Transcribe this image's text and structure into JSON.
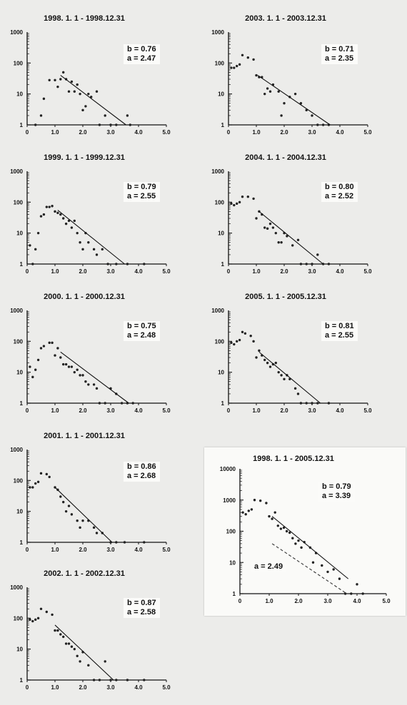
{
  "chart_data": [
    {
      "type": "scatter",
      "title": "1998. 1. 1 - 1998.12.31",
      "y_scale": "log",
      "xlim": [
        0,
        5.0
      ],
      "ylim": [
        1,
        1000
      ],
      "x_ticks": [
        "0",
        "1.0",
        "2.0",
        "3.0",
        "4.0",
        "5.0"
      ],
      "y_ticks": [
        "1000",
        "100",
        "10",
        "1"
      ],
      "annotations": {
        "b": "b = 0.76",
        "a": "a = 2.47"
      },
      "points": [
        [
          0.3,
          1
        ],
        [
          0.5,
          2
        ],
        [
          0.6,
          7
        ],
        [
          0.8,
          28
        ],
        [
          1.0,
          28
        ],
        [
          1.1,
          17
        ],
        [
          1.2,
          30
        ],
        [
          1.3,
          50
        ],
        [
          1.4,
          30
        ],
        [
          1.5,
          12
        ],
        [
          1.6,
          25
        ],
        [
          1.7,
          12
        ],
        [
          1.8,
          20
        ],
        [
          1.9,
          10
        ],
        [
          2.0,
          3
        ],
        [
          2.1,
          4
        ],
        [
          2.2,
          10
        ],
        [
          2.3,
          8
        ],
        [
          2.5,
          12
        ],
        [
          2.6,
          1
        ],
        [
          2.8,
          2
        ],
        [
          3.0,
          1
        ],
        [
          3.2,
          1
        ],
        [
          3.6,
          2
        ],
        [
          3.7,
          1
        ]
      ],
      "fit_line": {
        "x": [
          1.2,
          3.55
        ],
        "y": [
          40,
          1
        ]
      }
    },
    {
      "type": "scatter",
      "title": "2003. 1. 1 - 2003.12.31",
      "y_scale": "log",
      "xlim": [
        0,
        5.0
      ],
      "ylim": [
        1,
        1000
      ],
      "x_ticks": [
        "0",
        "1.0",
        "2.0",
        "3.0",
        "4.0",
        "5.0"
      ],
      "y_ticks": [
        "1000",
        "100",
        "10",
        "1"
      ],
      "annotations": {
        "b": "b = 0.71",
        "a": "a = 2.35"
      },
      "points": [
        [
          0.1,
          70
        ],
        [
          0.2,
          70
        ],
        [
          0.3,
          80
        ],
        [
          0.4,
          90
        ],
        [
          0.5,
          180
        ],
        [
          0.7,
          150
        ],
        [
          0.9,
          130
        ],
        [
          1.0,
          40
        ],
        [
          1.1,
          35
        ],
        [
          1.2,
          35
        ],
        [
          1.3,
          10
        ],
        [
          1.4,
          15
        ],
        [
          1.5,
          12
        ],
        [
          1.6,
          20
        ],
        [
          1.8,
          12
        ],
        [
          1.9,
          2
        ],
        [
          2.0,
          5
        ],
        [
          2.2,
          8
        ],
        [
          2.4,
          10
        ],
        [
          2.6,
          5
        ],
        [
          2.8,
          3
        ],
        [
          3.0,
          2
        ],
        [
          3.2,
          1
        ],
        [
          3.4,
          1
        ],
        [
          3.6,
          1
        ]
      ],
      "fit_line": {
        "x": [
          1.05,
          3.65
        ],
        "y": [
          40,
          1
        ]
      }
    },
    {
      "type": "scatter",
      "title": "1999. 1. 1 - 1999.12.31",
      "y_scale": "log",
      "xlim": [
        0,
        5.0
      ],
      "ylim": [
        1,
        1000
      ],
      "x_ticks": [
        "0",
        "1.0",
        "2.0",
        "3.0",
        "4.0",
        "5.0"
      ],
      "y_ticks": [
        "1000",
        "100",
        "10",
        "1"
      ],
      "annotations": {
        "b": "b = 0.79",
        "a": "a = 2.55"
      },
      "points": [
        [
          0.1,
          4
        ],
        [
          0.2,
          1
        ],
        [
          0.3,
          3
        ],
        [
          0.4,
          10
        ],
        [
          0.5,
          35
        ],
        [
          0.6,
          40
        ],
        [
          0.7,
          70
        ],
        [
          0.8,
          70
        ],
        [
          0.9,
          75
        ],
        [
          1.0,
          50
        ],
        [
          1.1,
          45
        ],
        [
          1.2,
          40
        ],
        [
          1.3,
          30
        ],
        [
          1.4,
          20
        ],
        [
          1.5,
          25
        ],
        [
          1.6,
          15
        ],
        [
          1.7,
          25
        ],
        [
          1.8,
          10
        ],
        [
          1.9,
          5
        ],
        [
          2.0,
          3
        ],
        [
          2.1,
          10
        ],
        [
          2.2,
          5
        ],
        [
          2.4,
          3
        ],
        [
          2.5,
          2
        ],
        [
          2.7,
          3
        ],
        [
          2.9,
          1
        ],
        [
          3.2,
          1
        ],
        [
          3.6,
          1
        ],
        [
          4.2,
          1
        ]
      ],
      "fit_line": {
        "x": [
          1.1,
          3.5
        ],
        "y": [
          55,
          1
        ]
      }
    },
    {
      "type": "scatter",
      "title": "2004. 1. 1 - 2004.12.31",
      "y_scale": "log",
      "xlim": [
        0,
        5.0
      ],
      "ylim": [
        1,
        1000
      ],
      "x_ticks": [
        "0",
        "1.0",
        "2.0",
        "3.0",
        "4.0",
        "5.0"
      ],
      "y_ticks": [
        "1000",
        "100",
        "10",
        "1"
      ],
      "annotations": {
        "b": "b = 0.80",
        "a": "a = 2.52"
      },
      "points": [
        [
          0.1,
          90
        ],
        [
          0.2,
          80
        ],
        [
          0.3,
          90
        ],
        [
          0.4,
          100
        ],
        [
          0.5,
          150
        ],
        [
          0.7,
          150
        ],
        [
          0.9,
          130
        ],
        [
          1.0,
          30
        ],
        [
          1.1,
          50
        ],
        [
          1.2,
          40
        ],
        [
          1.3,
          15
        ],
        [
          1.4,
          14
        ],
        [
          1.5,
          20
        ],
        [
          1.6,
          15
        ],
        [
          1.7,
          10
        ],
        [
          1.8,
          5
        ],
        [
          1.9,
          5
        ],
        [
          2.0,
          10
        ],
        [
          2.1,
          8
        ],
        [
          2.3,
          4
        ],
        [
          2.5,
          6
        ],
        [
          2.6,
          1
        ],
        [
          2.8,
          1
        ],
        [
          3.0,
          1
        ],
        [
          3.2,
          2
        ],
        [
          3.4,
          1
        ],
        [
          3.6,
          1
        ]
      ],
      "fit_line": {
        "x": [
          1.1,
          3.4
        ],
        "y": [
          50,
          1
        ]
      }
    },
    {
      "type": "scatter",
      "title": "2000. 1. 1 - 2000.12.31",
      "y_scale": "log",
      "xlim": [
        0,
        5.0
      ],
      "ylim": [
        1,
        1000
      ],
      "x_ticks": [
        "0",
        "1.0",
        "2.0",
        "3.0",
        "4.0",
        "5.0"
      ],
      "y_ticks": [
        "1000",
        "100",
        "10",
        "1"
      ],
      "annotations": {
        "b": "b = 0.75",
        "a": "a = 2.48"
      },
      "points": [
        [
          0.1,
          15
        ],
        [
          0.2,
          7
        ],
        [
          0.3,
          12
        ],
        [
          0.4,
          25
        ],
        [
          0.5,
          60
        ],
        [
          0.6,
          70
        ],
        [
          0.8,
          90
        ],
        [
          0.9,
          90
        ],
        [
          1.0,
          35
        ],
        [
          1.1,
          60
        ],
        [
          1.2,
          30
        ],
        [
          1.3,
          18
        ],
        [
          1.4,
          18
        ],
        [
          1.5,
          15
        ],
        [
          1.6,
          15
        ],
        [
          1.7,
          10
        ],
        [
          1.8,
          12
        ],
        [
          1.9,
          8
        ],
        [
          2.0,
          8
        ],
        [
          2.1,
          5
        ],
        [
          2.2,
          4
        ],
        [
          2.4,
          4
        ],
        [
          2.5,
          3
        ],
        [
          2.6,
          1
        ],
        [
          2.8,
          1
        ],
        [
          3.0,
          3
        ],
        [
          3.2,
          2
        ],
        [
          3.4,
          1
        ],
        [
          3.6,
          1
        ],
        [
          3.8,
          1
        ]
      ],
      "fit_line": {
        "x": [
          1.2,
          3.65
        ],
        "y": [
          45,
          1
        ]
      }
    },
    {
      "type": "scatter",
      "title": "2005. 1. 1 - 2005.12.31",
      "y_scale": "log",
      "xlim": [
        0,
        5.0
      ],
      "ylim": [
        1,
        1000
      ],
      "x_ticks": [
        "0",
        "1.0",
        "2.0",
        "3.0",
        "4.0",
        "5.0"
      ],
      "y_ticks": [
        "1000",
        "100",
        "10",
        "1"
      ],
      "annotations": {
        "b": "b = 0.81",
        "a": "a = 2.55"
      },
      "points": [
        [
          0.1,
          90
        ],
        [
          0.2,
          80
        ],
        [
          0.3,
          100
        ],
        [
          0.4,
          110
        ],
        [
          0.5,
          200
        ],
        [
          0.6,
          180
        ],
        [
          0.8,
          150
        ],
        [
          0.9,
          100
        ],
        [
          1.0,
          30
        ],
        [
          1.1,
          50
        ],
        [
          1.2,
          35
        ],
        [
          1.3,
          25
        ],
        [
          1.4,
          20
        ],
        [
          1.5,
          15
        ],
        [
          1.6,
          18
        ],
        [
          1.7,
          20
        ],
        [
          1.8,
          10
        ],
        [
          1.9,
          8
        ],
        [
          2.0,
          6
        ],
        [
          2.1,
          8
        ],
        [
          2.2,
          6
        ],
        [
          2.4,
          3
        ],
        [
          2.5,
          2
        ],
        [
          2.6,
          1
        ],
        [
          2.8,
          1
        ],
        [
          3.0,
          1
        ],
        [
          3.2,
          1
        ],
        [
          3.6,
          1
        ]
      ],
      "fit_line": {
        "x": [
          1.1,
          3.3
        ],
        "y": [
          45,
          1
        ]
      }
    },
    {
      "type": "scatter",
      "title": "2001. 1. 1 - 2001.12.31",
      "y_scale": "log",
      "xlim": [
        0,
        5.0
      ],
      "ylim": [
        1,
        1000
      ],
      "x_ticks": [
        "0",
        "1.0",
        "2.0",
        "3.0",
        "4.0",
        "5.0"
      ],
      "y_ticks": [
        "1000",
        "100",
        "10",
        "1"
      ],
      "annotations": {
        "b": "b = 0.86",
        "a": "a = 2.68"
      },
      "points": [
        [
          0.1,
          60
        ],
        [
          0.2,
          60
        ],
        [
          0.3,
          80
        ],
        [
          0.4,
          90
        ],
        [
          0.5,
          170
        ],
        [
          0.7,
          160
        ],
        [
          0.8,
          130
        ],
        [
          1.0,
          60
        ],
        [
          1.1,
          50
        ],
        [
          1.2,
          30
        ],
        [
          1.3,
          20
        ],
        [
          1.4,
          10
        ],
        [
          1.5,
          15
        ],
        [
          1.6,
          8
        ],
        [
          1.8,
          5
        ],
        [
          1.9,
          3
        ],
        [
          2.0,
          5
        ],
        [
          2.2,
          5
        ],
        [
          2.4,
          3
        ],
        [
          2.5,
          2
        ],
        [
          2.7,
          2
        ],
        [
          3.0,
          1
        ],
        [
          3.2,
          1
        ],
        [
          3.5,
          1
        ],
        [
          4.2,
          1
        ]
      ],
      "fit_line": {
        "x": [
          1.0,
          3.05
        ],
        "y": [
          60,
          1
        ]
      }
    },
    {
      "type": "scatter",
      "title": "1998. 1. 1 - 2005.12.31",
      "y_scale": "log",
      "xlim": [
        0,
        5.0
      ],
      "ylim": [
        1,
        10000
      ],
      "x_ticks": [
        "0",
        "1.0",
        "2.0",
        "3.0",
        "4.0",
        "5.0"
      ],
      "y_ticks": [
        "10000",
        "1000",
        "100",
        "10",
        "1"
      ],
      "annotations": {
        "b": "b = 0.79",
        "a": "a = 3.39",
        "a_dashed": "a = 2.49"
      },
      "points": [
        [
          0.1,
          400
        ],
        [
          0.2,
          350
        ],
        [
          0.3,
          450
        ],
        [
          0.4,
          500
        ],
        [
          0.5,
          1000
        ],
        [
          0.7,
          950
        ],
        [
          0.9,
          800
        ],
        [
          1.0,
          300
        ],
        [
          1.1,
          250
        ],
        [
          1.2,
          400
        ],
        [
          1.3,
          150
        ],
        [
          1.4,
          120
        ],
        [
          1.5,
          130
        ],
        [
          1.6,
          100
        ],
        [
          1.7,
          90
        ],
        [
          1.8,
          60
        ],
        [
          1.9,
          40
        ],
        [
          2.0,
          50
        ],
        [
          2.1,
          30
        ],
        [
          2.2,
          45
        ],
        [
          2.4,
          30
        ],
        [
          2.5,
          10
        ],
        [
          2.6,
          20
        ],
        [
          2.8,
          8
        ],
        [
          3.0,
          5
        ],
        [
          3.2,
          6
        ],
        [
          3.4,
          3
        ],
        [
          3.6,
          1
        ],
        [
          3.8,
          1
        ],
        [
          4.0,
          2
        ],
        [
          4.2,
          1
        ]
      ],
      "fit_line": {
        "x": [
          1.1,
          3.7
        ],
        "y": [
          300,
          3
        ]
      },
      "dashed_line": {
        "x": [
          1.1,
          3.65
        ],
        "y": [
          40,
          1
        ]
      }
    },
    {
      "type": "scatter",
      "title": "2002. 1. 1 - 2002.12.31",
      "y_scale": "log",
      "xlim": [
        0,
        5.0
      ],
      "ylim": [
        1,
        1000
      ],
      "x_ticks": [
        "0",
        "1.0",
        "2.0",
        "3.0",
        "4.0",
        "5.0"
      ],
      "y_ticks": [
        "1000",
        "100",
        "10",
        "1"
      ],
      "annotations": {
        "b": "b = 0.87",
        "a": "a = 2.58"
      },
      "points": [
        [
          0.1,
          90
        ],
        [
          0.2,
          80
        ],
        [
          0.3,
          90
        ],
        [
          0.4,
          100
        ],
        [
          0.5,
          200
        ],
        [
          0.7,
          160
        ],
        [
          0.9,
          130
        ],
        [
          1.0,
          40
        ],
        [
          1.1,
          40
        ],
        [
          1.2,
          30
        ],
        [
          1.3,
          25
        ],
        [
          1.4,
          15
        ],
        [
          1.5,
          15
        ],
        [
          1.6,
          12
        ],
        [
          1.7,
          10
        ],
        [
          1.8,
          6
        ],
        [
          1.9,
          4
        ],
        [
          2.0,
          8
        ],
        [
          2.2,
          3
        ],
        [
          2.4,
          1
        ],
        [
          2.6,
          1
        ],
        [
          2.8,
          4
        ],
        [
          3.0,
          1
        ],
        [
          3.2,
          1
        ],
        [
          3.6,
          1
        ],
        [
          4.2,
          1
        ]
      ],
      "fit_line": {
        "x": [
          1.0,
          3.1
        ],
        "y": [
          60,
          1
        ]
      }
    }
  ]
}
